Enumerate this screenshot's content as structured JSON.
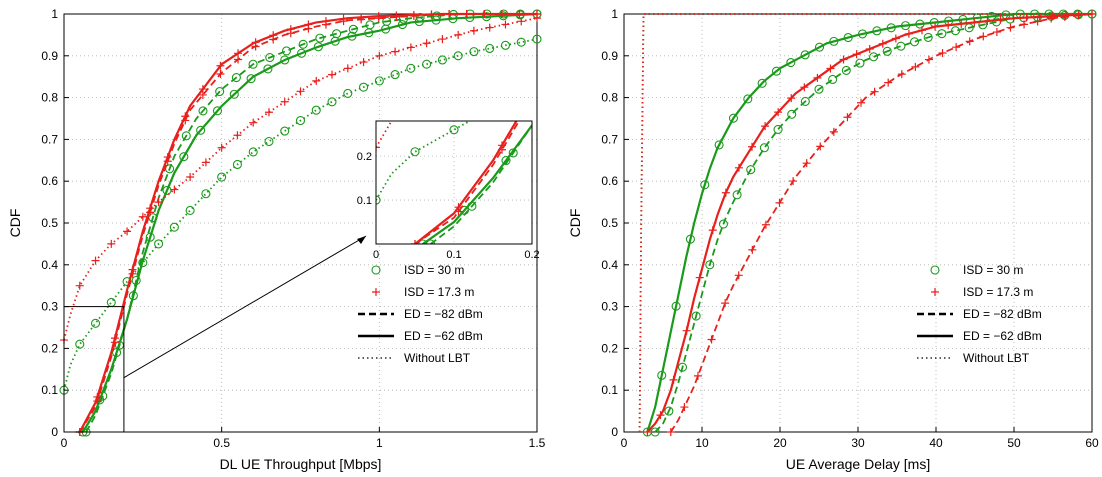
{
  "figure": {
    "legend_entries": [
      {
        "label": "ISD = 30 m",
        "marker": "circle",
        "color": "#1a9a1a"
      },
      {
        "label": "ISD = 17.3 m",
        "marker": "plus",
        "color": "#e8201c"
      },
      {
        "label": "ED = −82 dBm",
        "line": "dashed"
      },
      {
        "label": "ED = −62 dBm",
        "line": "solid"
      },
      {
        "label": "Without LBT",
        "line": "dotted"
      }
    ]
  },
  "chart_data": [
    {
      "type": "line",
      "xlabel": "DL UE Throughput [Mbps]",
      "ylabel": "CDF",
      "xlim": [
        0,
        1.5
      ],
      "ylim": [
        0,
        1
      ],
      "xticks": [
        "0",
        "0.5",
        "1",
        "1.5"
      ],
      "yticks": [
        "0",
        "0.1",
        "0.2",
        "0.3",
        "0.4",
        "0.5",
        "0.6",
        "0.7",
        "0.8",
        "0.9",
        "1"
      ],
      "grid": true,
      "legend_position": "lower-right",
      "zoom_box": {
        "x": [
          0,
          0.19
        ],
        "y": [
          0,
          0.3
        ]
      },
      "inset": {
        "xlim": [
          0,
          0.2
        ],
        "ylim": [
          0,
          0.28
        ],
        "xticks": [
          "0",
          "0.1",
          "0.2"
        ],
        "yticks": [
          "0.1",
          "0.2"
        ]
      },
      "series": [
        {
          "color": "#1a9a1a",
          "marker": "circle",
          "style": "solid",
          "x": [
            0.06,
            0.1,
            0.15,
            0.2,
            0.25,
            0.3,
            0.35,
            0.42,
            0.5,
            0.6,
            0.7,
            0.8,
            0.9,
            1.0,
            1.1,
            1.25,
            1.5
          ],
          "y": [
            0,
            0.05,
            0.15,
            0.27,
            0.41,
            0.53,
            0.62,
            0.71,
            0.78,
            0.85,
            0.89,
            0.92,
            0.945,
            0.96,
            0.98,
            0.99,
            1
          ]
        },
        {
          "color": "#1a9a1a",
          "marker": "circle",
          "style": "dashed",
          "x": [
            0.07,
            0.1,
            0.15,
            0.2,
            0.25,
            0.3,
            0.35,
            0.42,
            0.5,
            0.6,
            0.7,
            0.8,
            0.9,
            1.0,
            1.1,
            1.25,
            1.5
          ],
          "y": [
            0,
            0.04,
            0.14,
            0.27,
            0.43,
            0.56,
            0.66,
            0.75,
            0.82,
            0.88,
            0.91,
            0.94,
            0.96,
            0.98,
            0.99,
            1,
            1
          ]
        },
        {
          "color": "#1a9a1a",
          "marker": "circle",
          "style": "dotted",
          "x": [
            0,
            0.02,
            0.05,
            0.1,
            0.15,
            0.2,
            0.3,
            0.4,
            0.5,
            0.6,
            0.7,
            0.8,
            0.9,
            1.0,
            1.1,
            1.2,
            1.3,
            1.4,
            1.5
          ],
          "y": [
            0.1,
            0.16,
            0.21,
            0.26,
            0.31,
            0.36,
            0.45,
            0.53,
            0.61,
            0.67,
            0.72,
            0.77,
            0.81,
            0.84,
            0.87,
            0.89,
            0.91,
            0.925,
            0.94
          ]
        },
        {
          "color": "#e8201c",
          "marker": "plus",
          "style": "solid",
          "x": [
            0.05,
            0.1,
            0.15,
            0.2,
            0.25,
            0.3,
            0.35,
            0.4,
            0.5,
            0.6,
            0.7,
            0.8,
            0.9,
            1.0,
            1.2,
            1.5
          ],
          "y": [
            0,
            0.07,
            0.19,
            0.34,
            0.48,
            0.6,
            0.7,
            0.78,
            0.88,
            0.93,
            0.96,
            0.98,
            0.99,
            0.995,
            1,
            1
          ]
        },
        {
          "color": "#e8201c",
          "marker": "plus",
          "style": "dashed",
          "x": [
            0.05,
            0.1,
            0.15,
            0.2,
            0.25,
            0.3,
            0.35,
            0.4,
            0.5,
            0.6,
            0.7,
            0.8,
            0.9,
            1.0,
            1.2,
            1.5
          ],
          "y": [
            0,
            0.06,
            0.18,
            0.33,
            0.47,
            0.59,
            0.69,
            0.77,
            0.86,
            0.92,
            0.95,
            0.97,
            0.985,
            0.99,
            1,
            1
          ]
        },
        {
          "color": "#e8201c",
          "marker": "plus",
          "style": "dotted",
          "x": [
            0,
            0.02,
            0.05,
            0.1,
            0.15,
            0.2,
            0.3,
            0.4,
            0.5,
            0.6,
            0.7,
            0.8,
            0.9,
            1.0,
            1.1,
            1.2,
            1.3,
            1.4,
            1.5
          ],
          "y": [
            0.22,
            0.28,
            0.35,
            0.41,
            0.45,
            0.48,
            0.55,
            0.61,
            0.68,
            0.74,
            0.79,
            0.84,
            0.87,
            0.9,
            0.92,
            0.94,
            0.96,
            0.975,
            0.99
          ]
        }
      ]
    },
    {
      "type": "line",
      "xlabel": "UE Average Delay [ms]",
      "ylabel": "CDF",
      "xlim": [
        0,
        60
      ],
      "ylim": [
        0,
        1
      ],
      "xticks": [
        "0",
        "10",
        "20",
        "30",
        "40",
        "50",
        "60"
      ],
      "yticks": [
        "0",
        "0.1",
        "0.2",
        "0.3",
        "0.4",
        "0.5",
        "0.6",
        "0.7",
        "0.8",
        "0.9",
        "1"
      ],
      "grid": true,
      "legend_position": "lower-right",
      "series": [
        {
          "color": "#1a9a1a",
          "marker": "circle",
          "style": "solid",
          "x": [
            3,
            4,
            5,
            6,
            7,
            8,
            9,
            10,
            11,
            12,
            14,
            16,
            18,
            20,
            23,
            26,
            30,
            35,
            40,
            45,
            50,
            60
          ],
          "y": [
            0,
            0.06,
            0.15,
            0.24,
            0.33,
            0.42,
            0.5,
            0.57,
            0.63,
            0.68,
            0.75,
            0.8,
            0.84,
            0.87,
            0.9,
            0.93,
            0.95,
            0.97,
            0.98,
            0.99,
            1,
            1
          ]
        },
        {
          "color": "#1a9a1a",
          "marker": "circle",
          "style": "dashed",
          "x": [
            4,
            5,
            6,
            7,
            8,
            9,
            10,
            11,
            12,
            13,
            14,
            16,
            18,
            20,
            22,
            25,
            28,
            31,
            35,
            40,
            45,
            50,
            60
          ],
          "y": [
            0,
            0.02,
            0.06,
            0.12,
            0.19,
            0.26,
            0.33,
            0.4,
            0.46,
            0.51,
            0.55,
            0.62,
            0.68,
            0.73,
            0.77,
            0.82,
            0.86,
            0.89,
            0.92,
            0.95,
            0.97,
            0.99,
            1
          ]
        },
        {
          "color": "#1a9a1a",
          "marker": "circle",
          "style": "dotted",
          "x": [
            2,
            2.2,
            2.5,
            3,
            60
          ],
          "y": [
            0,
            0.5,
            1,
            1,
            1
          ]
        },
        {
          "color": "#e8201c",
          "marker": "plus",
          "style": "solid",
          "x": [
            3,
            4,
            5,
            6,
            7,
            8,
            9,
            10,
            11,
            12,
            13,
            14,
            16,
            18,
            20,
            22,
            25,
            28,
            32,
            36,
            40,
            45,
            50,
            60
          ],
          "y": [
            0,
            0.02,
            0.05,
            0.1,
            0.17,
            0.24,
            0.32,
            0.39,
            0.46,
            0.52,
            0.57,
            0.61,
            0.67,
            0.73,
            0.77,
            0.81,
            0.85,
            0.89,
            0.92,
            0.95,
            0.97,
            0.98,
            0.99,
            1
          ]
        },
        {
          "color": "#e8201c",
          "marker": "plus",
          "style": "dashed",
          "x": [
            6,
            7,
            8,
            9,
            10,
            11,
            12,
            13,
            14,
            16,
            18,
            20,
            22,
            25,
            28,
            31,
            35,
            40,
            45,
            50,
            55,
            60
          ],
          "y": [
            0,
            0.03,
            0.07,
            0.11,
            0.16,
            0.21,
            0.26,
            0.31,
            0.35,
            0.42,
            0.49,
            0.55,
            0.61,
            0.68,
            0.74,
            0.8,
            0.85,
            0.9,
            0.94,
            0.97,
            0.99,
            1
          ]
        },
        {
          "color": "#e8201c",
          "marker": "plus",
          "style": "dotted",
          "x": [
            2,
            2.2,
            2.5,
            3,
            60
          ],
          "y": [
            0,
            0.5,
            1,
            1,
            1
          ]
        }
      ]
    }
  ]
}
